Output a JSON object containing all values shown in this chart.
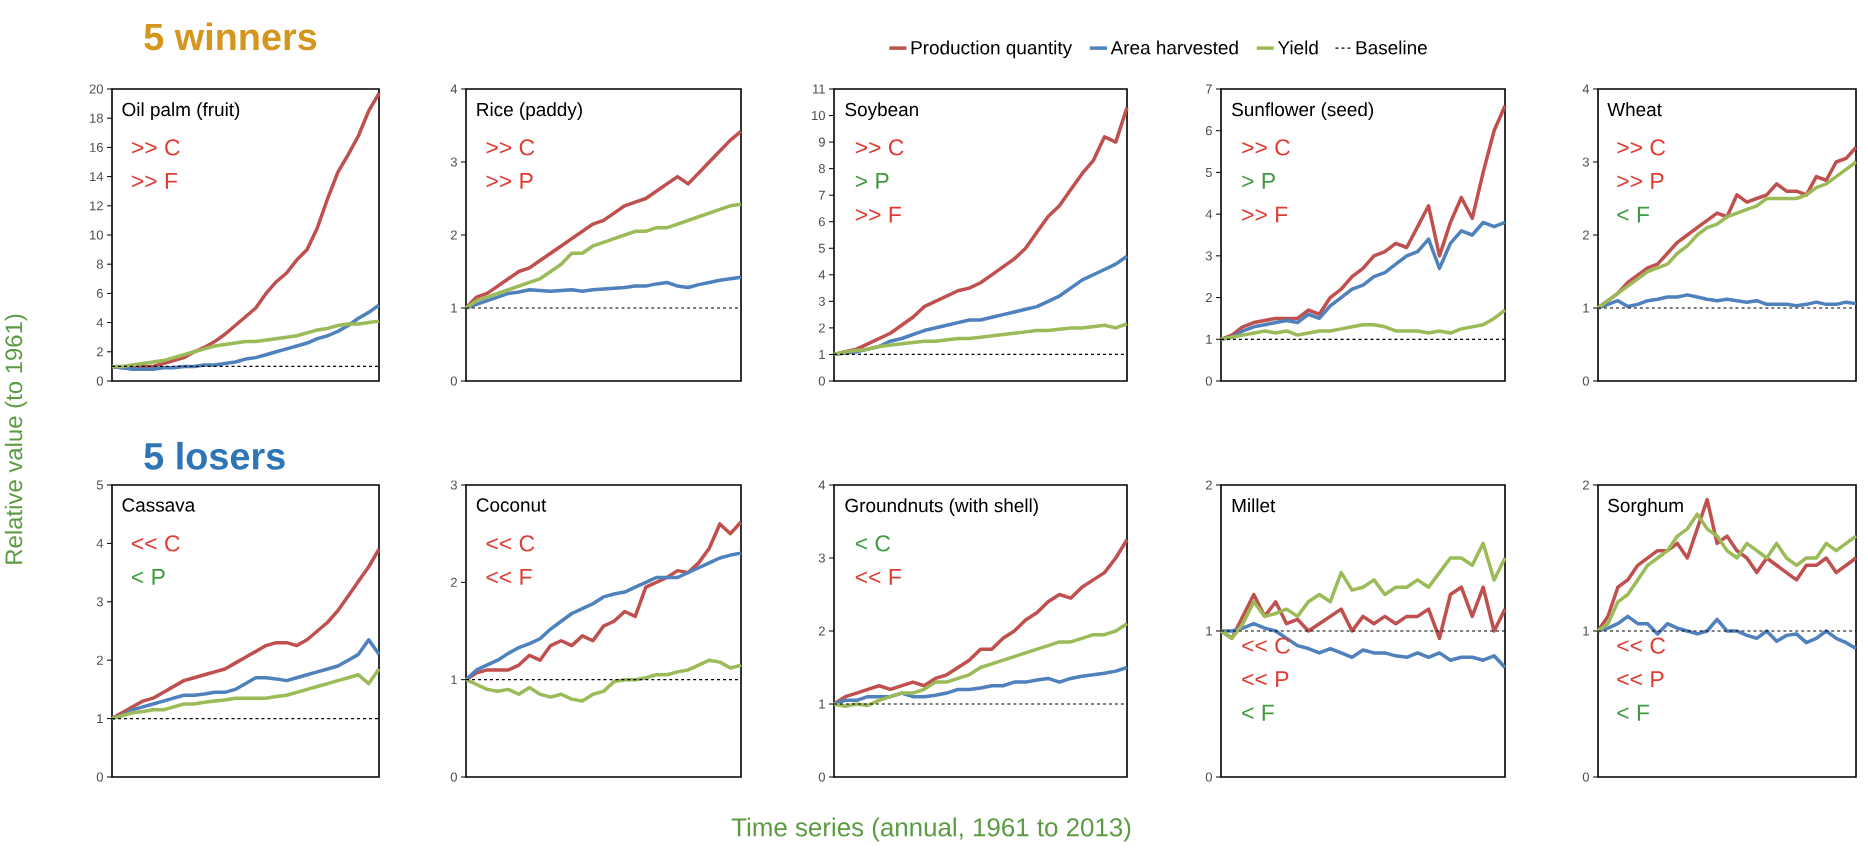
{
  "chart_data": [
    {
      "type": "line",
      "title": "Oil palm (fruit)",
      "subtitle": "5 winners",
      "ylabel": "Relative value (to 1961)",
      "legend": "top",
      "tick_labels": "y",
      "annotations": [
        ">> C",
        ">> F"
      ],
      "categories": [
        null,
        null,
        null,
        null,
        null,
        null,
        null,
        null,
        null,
        null,
        null,
        null,
        null,
        null,
        null,
        null,
        null,
        null,
        null,
        null,
        null,
        null,
        null,
        null,
        null,
        null,
        null
      ],
      "ylim": [
        0,
        20
      ],
      "yticks": [
        0,
        2,
        4,
        6,
        8,
        10,
        12,
        14,
        16,
        18,
        20
      ],
      "series": [
        {
          "name": "Production quantity",
          "color": "#c0504d",
          "values": [
            1.0,
            0.9,
            0.9,
            1.0,
            1.0,
            1.2,
            1.4,
            1.6,
            2.0,
            2.3,
            2.7,
            3.2,
            3.8,
            4.4,
            5.0,
            6.0,
            6.8,
            7.4,
            8.3,
            9.0,
            10.5,
            12.5,
            14.3,
            15.5,
            16.8,
            18.5,
            19.7
          ]
        },
        {
          "name": "Area harvested",
          "color": "#4f81bd",
          "values": [
            1.0,
            0.9,
            0.8,
            0.8,
            0.8,
            0.9,
            0.9,
            1.0,
            1.0,
            1.1,
            1.1,
            1.2,
            1.3,
            1.5,
            1.6,
            1.8,
            2.0,
            2.2,
            2.4,
            2.6,
            2.9,
            3.1,
            3.4,
            3.8,
            4.3,
            4.7,
            5.2
          ]
        },
        {
          "name": "Yield",
          "color": "#9bbb59",
          "values": [
            1.0,
            1.0,
            1.1,
            1.2,
            1.3,
            1.4,
            1.6,
            1.8,
            2.0,
            2.2,
            2.4,
            2.5,
            2.6,
            2.7,
            2.7,
            2.8,
            2.9,
            3.0,
            3.1,
            3.3,
            3.5,
            3.6,
            3.8,
            3.9,
            3.9,
            4.0,
            4.1
          ]
        }
      ],
      "ref_lines": [
        {
          "axis": "y",
          "value": 1,
          "label": "Baseline",
          "color": "#000000",
          "line_style": "dashed"
        }
      ]
    },
    {
      "type": "line",
      "title": "Rice (paddy)",
      "tick_labels": "y",
      "annotations": [
        ">> C",
        ">> P"
      ],
      "categories": [
        null,
        null,
        null,
        null,
        null,
        null,
        null,
        null,
        null,
        null,
        null,
        null,
        null,
        null,
        null,
        null,
        null,
        null,
        null,
        null,
        null,
        null,
        null,
        null,
        null,
        null,
        null
      ],
      "ylim": [
        0,
        4
      ],
      "yticks": [
        0,
        1,
        2,
        3,
        4
      ],
      "series": [
        {
          "color": "#c0504d",
          "values": [
            1.0,
            1.15,
            1.2,
            1.3,
            1.4,
            1.5,
            1.55,
            1.65,
            1.75,
            1.85,
            1.95,
            2.05,
            2.15,
            2.2,
            2.3,
            2.4,
            2.45,
            2.5,
            2.6,
            2.7,
            2.8,
            2.7,
            2.85,
            3.0,
            3.15,
            3.3,
            3.42
          ]
        },
        {
          "color": "#4f81bd",
          "values": [
            1.0,
            1.05,
            1.1,
            1.15,
            1.2,
            1.22,
            1.25,
            1.24,
            1.23,
            1.24,
            1.25,
            1.23,
            1.25,
            1.26,
            1.27,
            1.28,
            1.3,
            1.3,
            1.33,
            1.35,
            1.3,
            1.28,
            1.32,
            1.35,
            1.38,
            1.4,
            1.42
          ]
        },
        {
          "color": "#9bbb59",
          "values": [
            1.0,
            1.1,
            1.15,
            1.2,
            1.25,
            1.3,
            1.35,
            1.4,
            1.5,
            1.6,
            1.75,
            1.75,
            1.85,
            1.9,
            1.95,
            2.0,
            2.05,
            2.05,
            2.1,
            2.1,
            2.15,
            2.2,
            2.25,
            2.3,
            2.35,
            2.4,
            2.42
          ]
        }
      ],
      "ref_lines": [
        {
          "axis": "y",
          "value": 1,
          "color": "#000000",
          "line_style": "dashed"
        }
      ]
    },
    {
      "type": "line",
      "title": "Soybean",
      "tick_labels": "y",
      "annotations": [
        ">> C",
        "> P",
        ">> F"
      ],
      "categories": [
        null,
        null,
        null,
        null,
        null,
        null,
        null,
        null,
        null,
        null,
        null,
        null,
        null,
        null,
        null,
        null,
        null,
        null,
        null,
        null,
        null,
        null,
        null,
        null,
        null,
        null,
        null
      ],
      "ylim": [
        0,
        11
      ],
      "yticks": [
        0,
        1,
        2,
        3,
        4,
        5,
        6,
        7,
        8,
        9,
        10,
        11
      ],
      "series": [
        {
          "color": "#c0504d",
          "values": [
            1.0,
            1.1,
            1.2,
            1.4,
            1.6,
            1.8,
            2.1,
            2.4,
            2.8,
            3.0,
            3.2,
            3.4,
            3.5,
            3.7,
            4.0,
            4.3,
            4.6,
            5.0,
            5.6,
            6.2,
            6.6,
            7.2,
            7.8,
            8.3,
            9.2,
            9.0,
            10.3
          ]
        },
        {
          "color": "#4f81bd",
          "values": [
            1.0,
            1.05,
            1.1,
            1.2,
            1.3,
            1.5,
            1.6,
            1.75,
            1.9,
            2.0,
            2.1,
            2.2,
            2.3,
            2.3,
            2.4,
            2.5,
            2.6,
            2.7,
            2.8,
            3.0,
            3.2,
            3.5,
            3.8,
            4.0,
            4.2,
            4.4,
            4.7
          ]
        },
        {
          "color": "#9bbb59",
          "values": [
            1.0,
            1.1,
            1.15,
            1.2,
            1.3,
            1.35,
            1.4,
            1.45,
            1.5,
            1.5,
            1.55,
            1.6,
            1.6,
            1.65,
            1.7,
            1.75,
            1.8,
            1.85,
            1.9,
            1.9,
            1.95,
            2.0,
            2.0,
            2.05,
            2.1,
            2.0,
            2.15
          ]
        }
      ],
      "ref_lines": [
        {
          "axis": "y",
          "value": 1,
          "color": "#000000",
          "line_style": "dashed"
        }
      ]
    },
    {
      "type": "line",
      "title": "Sunflower (seed)",
      "tick_labels": "y",
      "annotations": [
        ">> C",
        "> P",
        ">> F"
      ],
      "categories": [
        null,
        null,
        null,
        null,
        null,
        null,
        null,
        null,
        null,
        null,
        null,
        null,
        null,
        null,
        null,
        null,
        null,
        null,
        null,
        null,
        null,
        null,
        null,
        null,
        null,
        null,
        null
      ],
      "ylim": [
        0,
        7
      ],
      "yticks": [
        0,
        1,
        2,
        3,
        4,
        5,
        6,
        7
      ],
      "series": [
        {
          "color": "#c0504d",
          "values": [
            1.0,
            1.1,
            1.3,
            1.4,
            1.45,
            1.5,
            1.5,
            1.5,
            1.7,
            1.6,
            2.0,
            2.2,
            2.5,
            2.7,
            3.0,
            3.1,
            3.3,
            3.2,
            3.7,
            4.2,
            3.0,
            3.8,
            4.4,
            3.9,
            5.0,
            6.0,
            6.6
          ]
        },
        {
          "color": "#4f81bd",
          "values": [
            1.0,
            1.05,
            1.2,
            1.3,
            1.35,
            1.4,
            1.45,
            1.4,
            1.6,
            1.5,
            1.8,
            2.0,
            2.2,
            2.3,
            2.5,
            2.6,
            2.8,
            3.0,
            3.1,
            3.4,
            2.7,
            3.3,
            3.6,
            3.5,
            3.8,
            3.7,
            3.8
          ]
        },
        {
          "color": "#9bbb59",
          "values": [
            1.0,
            1.05,
            1.1,
            1.15,
            1.2,
            1.15,
            1.2,
            1.1,
            1.15,
            1.2,
            1.2,
            1.25,
            1.3,
            1.35,
            1.35,
            1.3,
            1.2,
            1.2,
            1.2,
            1.15,
            1.2,
            1.15,
            1.25,
            1.3,
            1.35,
            1.5,
            1.7
          ]
        }
      ],
      "ref_lines": [
        {
          "axis": "y",
          "value": 1,
          "color": "#000000",
          "line_style": "dashed"
        }
      ]
    },
    {
      "type": "line",
      "title": "Wheat",
      "tick_labels": "y",
      "annotations": [
        ">> C",
        ">> P",
        "< F"
      ],
      "categories": [
        null,
        null,
        null,
        null,
        null,
        null,
        null,
        null,
        null,
        null,
        null,
        null,
        null,
        null,
        null,
        null,
        null,
        null,
        null,
        null,
        null,
        null,
        null,
        null,
        null,
        null,
        null
      ],
      "ylim": [
        0,
        4
      ],
      "yticks": [
        0,
        1,
        2,
        3,
        4
      ],
      "series": [
        {
          "color": "#c0504d",
          "values": [
            1.0,
            1.1,
            1.2,
            1.35,
            1.45,
            1.55,
            1.6,
            1.75,
            1.9,
            2.0,
            2.1,
            2.2,
            2.3,
            2.25,
            2.55,
            2.45,
            2.5,
            2.55,
            2.7,
            2.6,
            2.6,
            2.55,
            2.8,
            2.75,
            3.0,
            3.05,
            3.2
          ]
        },
        {
          "color": "#4f81bd",
          "values": [
            1.0,
            1.05,
            1.1,
            1.02,
            1.05,
            1.1,
            1.12,
            1.15,
            1.15,
            1.18,
            1.15,
            1.12,
            1.1,
            1.12,
            1.1,
            1.08,
            1.1,
            1.05,
            1.05,
            1.05,
            1.03,
            1.05,
            1.08,
            1.05,
            1.05,
            1.08,
            1.06
          ]
        },
        {
          "color": "#9bbb59",
          "values": [
            1.0,
            1.1,
            1.2,
            1.3,
            1.4,
            1.5,
            1.55,
            1.6,
            1.75,
            1.85,
            2.0,
            2.1,
            2.15,
            2.25,
            2.3,
            2.35,
            2.4,
            2.5,
            2.5,
            2.5,
            2.5,
            2.55,
            2.65,
            2.7,
            2.8,
            2.9,
            3.0
          ]
        }
      ],
      "ref_lines": [
        {
          "axis": "y",
          "value": 1,
          "color": "#000000",
          "line_style": "dashed"
        }
      ]
    },
    {
      "type": "line",
      "title": "Cassava",
      "subtitle": "5 losers",
      "tick_labels": "y",
      "annotations": [
        "<< C",
        "< P"
      ],
      "categories": [
        null,
        null,
        null,
        null,
        null,
        null,
        null,
        null,
        null,
        null,
        null,
        null,
        null,
        null,
        null,
        null,
        null,
        null,
        null,
        null,
        null,
        null,
        null,
        null,
        null,
        null,
        null
      ],
      "ylim": [
        0,
        5
      ],
      "yticks": [
        0,
        1,
        2,
        3,
        4,
        5
      ],
      "series": [
        {
          "color": "#c0504d",
          "values": [
            1.0,
            1.1,
            1.2,
            1.3,
            1.35,
            1.45,
            1.55,
            1.65,
            1.7,
            1.75,
            1.8,
            1.85,
            1.95,
            2.05,
            2.15,
            2.25,
            2.3,
            2.3,
            2.25,
            2.35,
            2.5,
            2.65,
            2.85,
            3.1,
            3.35,
            3.6,
            3.9
          ]
        },
        {
          "color": "#4f81bd",
          "values": [
            1.0,
            1.05,
            1.15,
            1.2,
            1.25,
            1.3,
            1.35,
            1.4,
            1.4,
            1.42,
            1.45,
            1.45,
            1.5,
            1.6,
            1.7,
            1.7,
            1.68,
            1.65,
            1.7,
            1.75,
            1.8,
            1.85,
            1.9,
            2.0,
            2.1,
            2.35,
            2.1
          ]
        },
        {
          "color": "#9bbb59",
          "values": [
            1.0,
            1.05,
            1.1,
            1.12,
            1.15,
            1.15,
            1.2,
            1.25,
            1.25,
            1.28,
            1.3,
            1.32,
            1.35,
            1.35,
            1.35,
            1.35,
            1.38,
            1.4,
            1.45,
            1.5,
            1.55,
            1.6,
            1.65,
            1.7,
            1.75,
            1.6,
            1.85
          ]
        }
      ],
      "ref_lines": [
        {
          "axis": "y",
          "value": 1,
          "color": "#000000",
          "line_style": "dashed"
        }
      ]
    },
    {
      "type": "line",
      "title": "Coconut",
      "tick_labels": "y",
      "annotations": [
        "<< C",
        "<< F"
      ],
      "categories": [
        null,
        null,
        null,
        null,
        null,
        null,
        null,
        null,
        null,
        null,
        null,
        null,
        null,
        null,
        null,
        null,
        null,
        null,
        null,
        null,
        null,
        null,
        null,
        null,
        null,
        null,
        null
      ],
      "ylim": [
        0,
        3
      ],
      "yticks": [
        0,
        1,
        2,
        3
      ],
      "series": [
        {
          "color": "#c0504d",
          "values": [
            1.0,
            1.07,
            1.1,
            1.1,
            1.1,
            1.15,
            1.25,
            1.2,
            1.35,
            1.4,
            1.35,
            1.45,
            1.4,
            1.55,
            1.6,
            1.7,
            1.65,
            1.95,
            2.0,
            2.05,
            2.12,
            2.1,
            2.2,
            2.35,
            2.6,
            2.5,
            2.62
          ]
        },
        {
          "color": "#4f81bd",
          "values": [
            1.0,
            1.1,
            1.15,
            1.2,
            1.27,
            1.33,
            1.37,
            1.42,
            1.52,
            1.6,
            1.68,
            1.73,
            1.78,
            1.85,
            1.88,
            1.9,
            1.95,
            2.0,
            2.05,
            2.05,
            2.05,
            2.1,
            2.15,
            2.2,
            2.25,
            2.28,
            2.3
          ]
        },
        {
          "color": "#9bbb59",
          "values": [
            1.0,
            0.95,
            0.9,
            0.88,
            0.9,
            0.85,
            0.92,
            0.85,
            0.82,
            0.85,
            0.8,
            0.78,
            0.85,
            0.88,
            0.98,
            1.0,
            1.0,
            1.02,
            1.05,
            1.05,
            1.08,
            1.1,
            1.15,
            1.2,
            1.18,
            1.12,
            1.15
          ]
        }
      ],
      "ref_lines": [
        {
          "axis": "y",
          "value": 1,
          "color": "#000000",
          "line_style": "dashed"
        }
      ]
    },
    {
      "type": "line",
      "title": "Groundnuts (with shell)",
      "xlabel": "Time series (annual, 1961 to 2013)",
      "tick_labels": "y",
      "annotations": [
        "< C",
        "<< F"
      ],
      "categories": [
        null,
        null,
        null,
        null,
        null,
        null,
        null,
        null,
        null,
        null,
        null,
        null,
        null,
        null,
        null,
        null,
        null,
        null,
        null,
        null,
        null,
        null,
        null,
        null,
        null,
        null,
        null
      ],
      "ylim": [
        0,
        4
      ],
      "yticks": [
        0,
        1,
        2,
        3,
        4
      ],
      "series": [
        {
          "color": "#c0504d",
          "values": [
            1.0,
            1.1,
            1.15,
            1.2,
            1.25,
            1.2,
            1.25,
            1.3,
            1.25,
            1.35,
            1.4,
            1.5,
            1.6,
            1.75,
            1.75,
            1.9,
            2.0,
            2.15,
            2.25,
            2.4,
            2.5,
            2.45,
            2.6,
            2.7,
            2.8,
            3.0,
            3.25
          ]
        },
        {
          "color": "#4f81bd",
          "values": [
            1.0,
            1.05,
            1.05,
            1.1,
            1.1,
            1.1,
            1.15,
            1.1,
            1.1,
            1.12,
            1.15,
            1.2,
            1.2,
            1.22,
            1.25,
            1.25,
            1.3,
            1.3,
            1.33,
            1.35,
            1.3,
            1.35,
            1.38,
            1.4,
            1.42,
            1.45,
            1.5
          ]
        },
        {
          "color": "#9bbb59",
          "values": [
            1.0,
            0.97,
            1.0,
            0.98,
            1.05,
            1.1,
            1.15,
            1.15,
            1.2,
            1.3,
            1.3,
            1.35,
            1.4,
            1.5,
            1.55,
            1.6,
            1.65,
            1.7,
            1.75,
            1.8,
            1.85,
            1.85,
            1.9,
            1.95,
            1.95,
            2.0,
            2.1
          ]
        }
      ],
      "ref_lines": [
        {
          "axis": "y",
          "value": 1,
          "color": "#000000",
          "line_style": "dashed"
        }
      ]
    },
    {
      "type": "line",
      "title": "Millet",
      "tick_labels": "y",
      "annotations": [
        "<< C",
        "<< P",
        "< F"
      ],
      "categories": [
        null,
        null,
        null,
        null,
        null,
        null,
        null,
        null,
        null,
        null,
        null,
        null,
        null,
        null,
        null,
        null,
        null,
        null,
        null,
        null,
        null,
        null,
        null,
        null,
        null,
        null,
        null
      ],
      "ylim": [
        0,
        2
      ],
      "yticks": [
        0,
        1,
        2
      ],
      "series": [
        {
          "color": "#c0504d",
          "values": [
            1.0,
            0.95,
            1.1,
            1.25,
            1.1,
            1.2,
            1.05,
            1.08,
            1.0,
            1.05,
            1.1,
            1.15,
            1.0,
            1.1,
            1.05,
            1.1,
            1.05,
            1.1,
            1.1,
            1.15,
            0.95,
            1.25,
            1.3,
            1.1,
            1.3,
            1.0,
            1.15
          ]
        },
        {
          "color": "#4f81bd",
          "values": [
            1.0,
            1.0,
            1.02,
            1.05,
            1.02,
            1.0,
            0.95,
            0.9,
            0.88,
            0.85,
            0.88,
            0.85,
            0.82,
            0.87,
            0.85,
            0.85,
            0.83,
            0.82,
            0.85,
            0.82,
            0.85,
            0.8,
            0.82,
            0.82,
            0.8,
            0.83,
            0.75
          ]
        },
        {
          "color": "#9bbb59",
          "values": [
            1.0,
            0.95,
            1.05,
            1.2,
            1.1,
            1.12,
            1.15,
            1.1,
            1.2,
            1.25,
            1.2,
            1.4,
            1.28,
            1.3,
            1.35,
            1.25,
            1.3,
            1.3,
            1.35,
            1.3,
            1.4,
            1.5,
            1.5,
            1.45,
            1.6,
            1.35,
            1.5
          ]
        }
      ],
      "ref_lines": [
        {
          "axis": "y",
          "value": 1,
          "color": "#000000",
          "line_style": "dashed"
        }
      ]
    },
    {
      "type": "line",
      "title": "Sorghum",
      "tick_labels": "y",
      "annotations": [
        "<< C",
        "<< P",
        "< F"
      ],
      "categories": [
        null,
        null,
        null,
        null,
        null,
        null,
        null,
        null,
        null,
        null,
        null,
        null,
        null,
        null,
        null,
        null,
        null,
        null,
        null,
        null,
        null,
        null,
        null,
        null,
        null,
        null,
        null
      ],
      "ylim": [
        0,
        2
      ],
      "yticks": [
        0,
        1,
        2
      ],
      "series": [
        {
          "color": "#c0504d",
          "values": [
            1.0,
            1.1,
            1.3,
            1.35,
            1.45,
            1.5,
            1.55,
            1.55,
            1.6,
            1.5,
            1.7,
            1.9,
            1.6,
            1.65,
            1.55,
            1.5,
            1.4,
            1.5,
            1.45,
            1.4,
            1.35,
            1.45,
            1.45,
            1.5,
            1.4,
            1.45,
            1.5
          ]
        },
        {
          "color": "#4f81bd",
          "values": [
            1.0,
            1.02,
            1.05,
            1.1,
            1.05,
            1.05,
            0.98,
            1.05,
            1.02,
            1.0,
            0.98,
            1.0,
            1.08,
            1.0,
            1.0,
            0.97,
            0.95,
            1.0,
            0.93,
            0.97,
            0.98,
            0.92,
            0.95,
            1.0,
            0.95,
            0.92,
            0.88
          ]
        },
        {
          "color": "#9bbb59",
          "values": [
            1.0,
            1.05,
            1.2,
            1.25,
            1.35,
            1.45,
            1.5,
            1.55,
            1.65,
            1.7,
            1.8,
            1.7,
            1.65,
            1.55,
            1.5,
            1.6,
            1.55,
            1.5,
            1.6,
            1.5,
            1.45,
            1.5,
            1.5,
            1.6,
            1.55,
            1.6,
            1.65
          ]
        }
      ],
      "ref_lines": [
        {
          "axis": "y",
          "value": 1,
          "color": "#000000",
          "line_style": "dashed"
        }
      ]
    }
  ]
}
